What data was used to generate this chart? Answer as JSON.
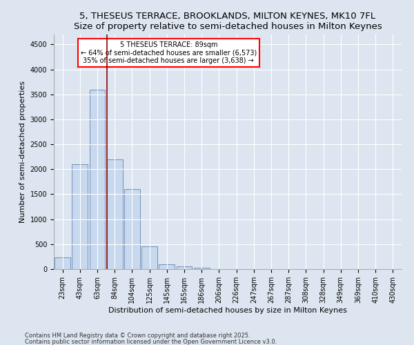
{
  "title1": "5, THESEUS TERRACE, BROOKLANDS, MILTON KEYNES, MK10 7FL",
  "title2": "Size of property relative to semi-detached houses in Milton Keynes",
  "xlabel": "Distribution of semi-detached houses by size in Milton Keynes",
  "ylabel": "Number of semi-detached properties",
  "categories": [
    "23sqm",
    "43sqm",
    "63sqm",
    "84sqm",
    "104sqm",
    "125sqm",
    "145sqm",
    "165sqm",
    "186sqm",
    "206sqm",
    "226sqm",
    "247sqm",
    "267sqm",
    "287sqm",
    "308sqm",
    "328sqm",
    "349sqm",
    "369sqm",
    "410sqm",
    "430sqm"
  ],
  "values": [
    230,
    2100,
    3600,
    2200,
    1600,
    450,
    100,
    60,
    30,
    0,
    0,
    0,
    0,
    0,
    0,
    0,
    0,
    0,
    0,
    0
  ],
  "bar_color": "#c8d8ee",
  "bar_edge_color": "#7090b8",
  "annotation_text": "5 THESEUS TERRACE: 89sqm\n← 64% of semi-detached houses are smaller (6,573)\n35% of semi-detached houses are larger (3,638) →",
  "annotation_box_color": "white",
  "annotation_box_edge": "red",
  "ylim": [
    0,
    4700
  ],
  "yticks": [
    0,
    500,
    1000,
    1500,
    2000,
    2500,
    3000,
    3500,
    4000,
    4500
  ],
  "footer1": "Contains HM Land Registry data © Crown copyright and database right 2025.",
  "footer2": "Contains public sector information licensed under the Open Government Licence v3.0.",
  "background_color": "#dde6f0",
  "plot_bg_color": "#dde6f0",
  "title1_fontsize": 9.5,
  "title2_fontsize": 8.5,
  "tick_fontsize": 7,
  "ylabel_fontsize": 8,
  "xlabel_fontsize": 8,
  "footer_fontsize": 6,
  "vline_color": "#8b0000",
  "vline_x": 2.55
}
